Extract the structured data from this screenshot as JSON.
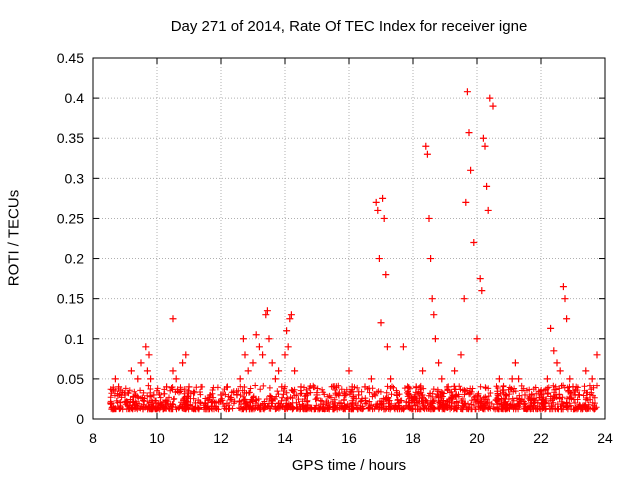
{
  "chart_data": {
    "type": "scatter",
    "title": "Day 271 of 2014, Rate Of TEC Index for receiver igne",
    "xlabel": "GPS time / hours",
    "ylabel": "ROTI / TECUs",
    "xlim": [
      8,
      24
    ],
    "ylim": [
      0,
      0.45
    ],
    "xticks": [
      8,
      10,
      12,
      14,
      16,
      18,
      20,
      22,
      24
    ],
    "yticks": [
      0,
      0.05,
      0.1,
      0.15,
      0.2,
      0.25,
      0.3,
      0.35,
      0.4,
      0.45
    ],
    "grid": true,
    "marker": "+",
    "color": "#ff0000",
    "x": [
      8.55,
      8.7,
      8.8,
      9.0,
      9.2,
      9.4,
      9.5,
      9.65,
      9.7,
      9.75,
      9.8,
      9.9,
      10.1,
      10.3,
      10.5,
      10.5,
      10.6,
      10.8,
      10.9,
      11.0,
      11.2,
      11.5,
      11.8,
      12.0,
      12.2,
      12.5,
      12.6,
      12.7,
      12.75,
      12.85,
      13.0,
      13.1,
      13.2,
      13.3,
      13.4,
      13.45,
      13.5,
      13.6,
      13.7,
      13.8,
      13.9,
      14.0,
      14.05,
      14.1,
      14.15,
      14.2,
      14.3,
      14.5,
      14.7,
      15.0,
      15.3,
      15.6,
      15.9,
      16.0,
      16.1,
      16.3,
      16.5,
      16.7,
      16.85,
      16.9,
      16.95,
      17.0,
      17.05,
      17.1,
      17.15,
      17.2,
      17.3,
      17.5,
      17.7,
      17.9,
      18.1,
      18.3,
      18.4,
      18.45,
      18.5,
      18.55,
      18.6,
      18.65,
      18.7,
      18.8,
      18.9,
      19.1,
      19.3,
      19.5,
      19.6,
      19.65,
      19.7,
      19.75,
      19.8,
      19.9,
      20.0,
      20.1,
      20.15,
      20.2,
      20.25,
      20.3,
      20.35,
      20.4,
      20.5,
      20.7,
      20.9,
      21.1,
      21.2,
      21.3,
      21.5,
      21.7,
      21.9,
      22.0,
      22.2,
      22.3,
      22.4,
      22.5,
      22.6,
      22.7,
      22.75,
      22.8,
      22.9,
      23.0,
      23.2,
      23.4,
      23.6,
      23.75
    ],
    "y": [
      0.02,
      0.05,
      0.04,
      0.03,
      0.06,
      0.05,
      0.07,
      0.09,
      0.06,
      0.08,
      0.05,
      0.03,
      0.02,
      0.04,
      0.125,
      0.06,
      0.05,
      0.07,
      0.08,
      0.04,
      0.02,
      0.02,
      0.02,
      0.03,
      0.04,
      0.03,
      0.05,
      0.1,
      0.08,
      0.06,
      0.07,
      0.105,
      0.09,
      0.08,
      0.13,
      0.135,
      0.1,
      0.07,
      0.05,
      0.06,
      0.04,
      0.08,
      0.11,
      0.09,
      0.125,
      0.13,
      0.06,
      0.04,
      0.03,
      0.03,
      0.02,
      0.03,
      0.03,
      0.06,
      0.04,
      0.03,
      0.04,
      0.05,
      0.27,
      0.26,
      0.2,
      0.12,
      0.275,
      0.25,
      0.18,
      0.09,
      0.05,
      0.03,
      0.09,
      0.03,
      0.04,
      0.06,
      0.34,
      0.33,
      0.25,
      0.2,
      0.15,
      0.13,
      0.1,
      0.07,
      0.05,
      0.04,
      0.06,
      0.08,
      0.15,
      0.27,
      0.408,
      0.357,
      0.31,
      0.22,
      0.1,
      0.175,
      0.16,
      0.35,
      0.34,
      0.29,
      0.26,
      0.4,
      0.39,
      0.05,
      0.03,
      0.05,
      0.07,
      0.05,
      0.03,
      0.02,
      0.02,
      0.03,
      0.05,
      0.113,
      0.085,
      0.07,
      0.06,
      0.165,
      0.15,
      0.125,
      0.05,
      0.04,
      0.03,
      0.06,
      0.05,
      0.08
    ]
  }
}
